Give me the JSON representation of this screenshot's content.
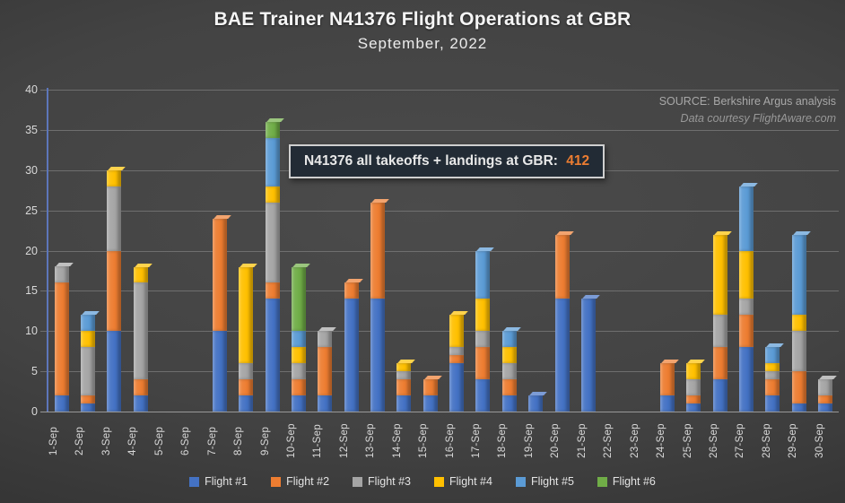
{
  "header": {
    "title": "BAE Trainer N41376 Flight Operations at GBR",
    "subtitle": "September, 2022"
  },
  "source": {
    "line1": "SOURCE: Berkshire Argus analysis",
    "line2": "Data courtesy FlightAware.com"
  },
  "annotation": {
    "label": "N41376 all takeoffs + landings at GBR:",
    "value": "412",
    "value_color": "#ED7D31"
  },
  "chart_data": {
    "type": "bar",
    "stacked": true,
    "title": "BAE Trainer N41376 Flight Operations at GBR",
    "subtitle": "September, 2022",
    "xlabel": "",
    "ylabel": "",
    "ylim": [
      0,
      40
    ],
    "yticks": [
      0,
      5,
      10,
      15,
      20,
      25,
      30,
      35,
      40
    ],
    "grid": true,
    "legend_position": "bottom",
    "total_operations": 412,
    "categories": [
      "1-Sep",
      "2-Sep",
      "3-Sep",
      "4-Sep",
      "5-Sep",
      "6-Sep",
      "7-Sep",
      "8-Sep",
      "9-Sep",
      "10-Sep",
      "11-Sep",
      "12-Sep",
      "13-Sep",
      "14-Sep",
      "15-Sep",
      "16-Sep",
      "17-Sep",
      "18-Sep",
      "19-Sep",
      "20-Sep",
      "21-Sep",
      "22-Sep",
      "23-Sep",
      "24-Sep",
      "25-Sep",
      "26-Sep",
      "27-Sep",
      "28-Sep",
      "29-Sep",
      "30-Sep"
    ],
    "series": [
      {
        "name": "Flight #1",
        "color": "#4472C4",
        "values": [
          2,
          1,
          10,
          2,
          0,
          0,
          10,
          2,
          14,
          2,
          2,
          14,
          14,
          2,
          2,
          6,
          4,
          2,
          2,
          14,
          14,
          0,
          0,
          2,
          1,
          4,
          8,
          2,
          1,
          1
        ]
      },
      {
        "name": "Flight #2",
        "color": "#ED7D31",
        "values": [
          14,
          1,
          10,
          2,
          0,
          0,
          14,
          2,
          2,
          2,
          6,
          2,
          12,
          2,
          2,
          1,
          4,
          2,
          0,
          8,
          0,
          0,
          0,
          4,
          1,
          4,
          4,
          2,
          4,
          1
        ]
      },
      {
        "name": "Flight #3",
        "color": "#A5A5A5",
        "values": [
          2,
          6,
          8,
          12,
          0,
          0,
          0,
          2,
          10,
          2,
          2,
          0,
          0,
          1,
          0,
          1,
          2,
          2,
          0,
          0,
          0,
          0,
          0,
          0,
          2,
          4,
          2,
          1,
          5,
          2
        ]
      },
      {
        "name": "Flight #4",
        "color": "#FFC000",
        "values": [
          0,
          2,
          2,
          2,
          0,
          0,
          0,
          12,
          2,
          2,
          0,
          0,
          0,
          1,
          0,
          4,
          4,
          2,
          0,
          0,
          0,
          0,
          0,
          0,
          2,
          10,
          6,
          1,
          2,
          0
        ]
      },
      {
        "name": "Flight #5",
        "color": "#5B9BD5",
        "values": [
          0,
          2,
          0,
          0,
          0,
          0,
          0,
          0,
          6,
          2,
          0,
          0,
          0,
          0,
          0,
          0,
          6,
          2,
          0,
          0,
          0,
          0,
          0,
          0,
          0,
          0,
          8,
          2,
          10,
          0
        ]
      },
      {
        "name": "Flight #6",
        "color": "#70AD47",
        "values": [
          0,
          0,
          0,
          0,
          0,
          0,
          0,
          0,
          2,
          8,
          0,
          0,
          0,
          0,
          0,
          0,
          0,
          0,
          0,
          0,
          0,
          0,
          0,
          0,
          0,
          0,
          0,
          0,
          0,
          0
        ]
      }
    ]
  }
}
